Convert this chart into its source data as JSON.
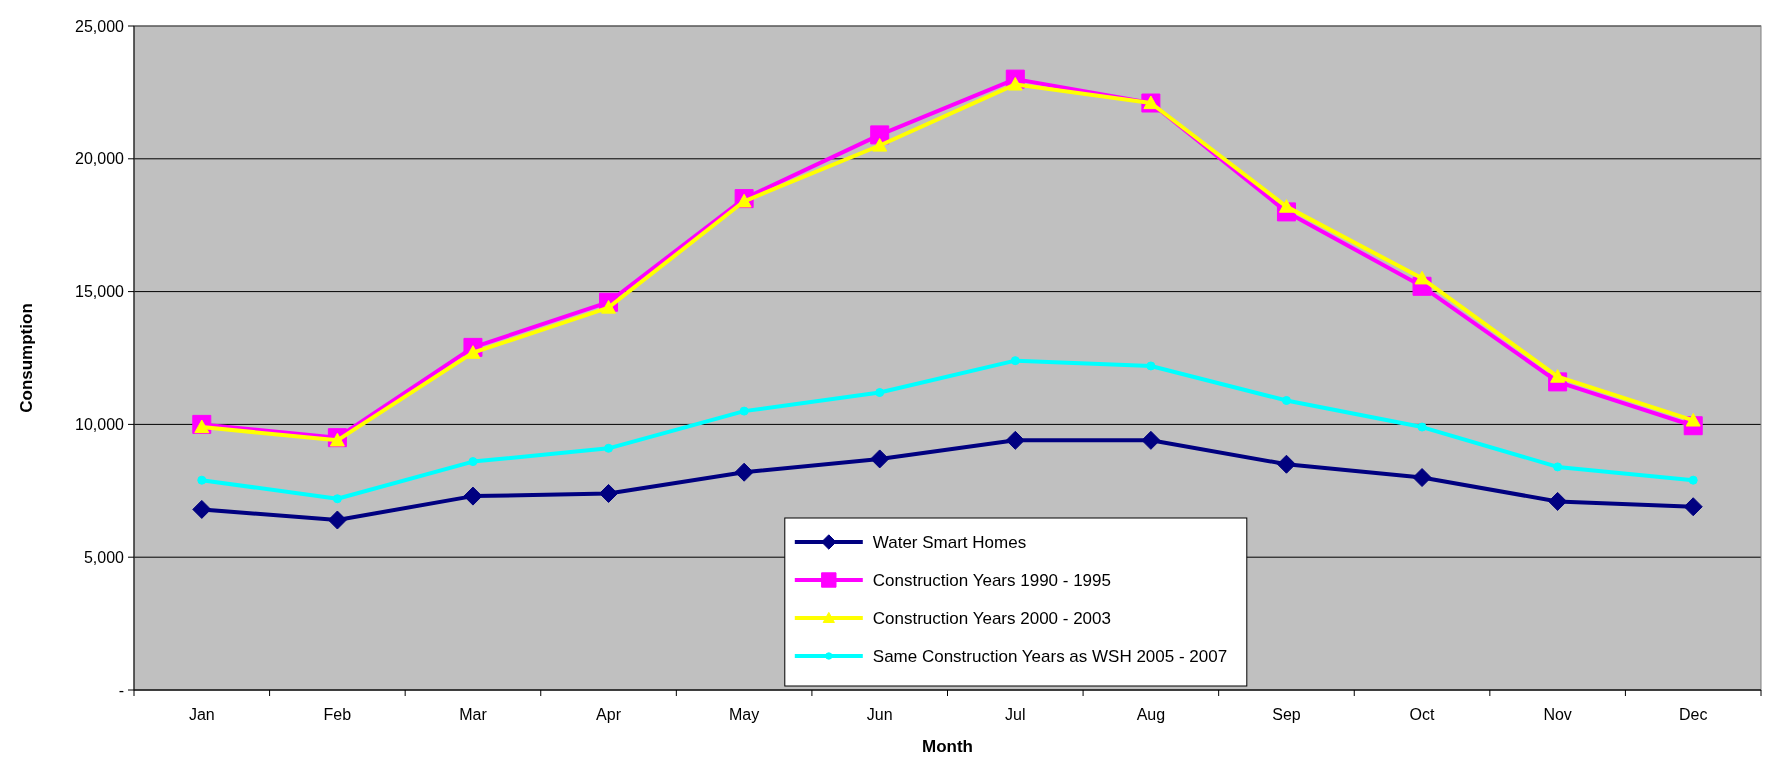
{
  "chart_data": {
    "type": "line",
    "xlabel": "Month",
    "ylabel": "Consumption",
    "categories": [
      "Jan",
      "Feb",
      "Mar",
      "Apr",
      "May",
      "Jun",
      "Jul",
      "Aug",
      "Sep",
      "Oct",
      "Nov",
      "Dec"
    ],
    "series": [
      {
        "name": "Water Smart Homes",
        "color": "#000080",
        "marker": "diamond",
        "values": [
          6800,
          6400,
          7300,
          7400,
          8200,
          8700,
          9400,
          9400,
          8500,
          8000,
          7100,
          6900
        ]
      },
      {
        "name": "Construction Years 1990 - 1995",
        "color": "#ff00ff",
        "marker": "square",
        "values": [
          10000,
          9500,
          12900,
          14600,
          18500,
          20900,
          23000,
          22100,
          18000,
          15200,
          11600,
          9950
        ]
      },
      {
        "name": "Construction Years 2000 - 2003",
        "color": "#ffff00",
        "marker": "triangle",
        "values": [
          9900,
          9400,
          12700,
          14400,
          18400,
          20500,
          22800,
          22100,
          18200,
          15500,
          11800,
          10150
        ]
      },
      {
        "name": "Same Construction Years as WSH 2005 - 2007",
        "color": "#00ffff",
        "marker": "circle",
        "values": [
          7900,
          7200,
          8600,
          9100,
          10500,
          11200,
          12400,
          12200,
          10900,
          9900,
          8400,
          7900
        ]
      }
    ],
    "ylim": [
      0,
      25000
    ],
    "yticks": [
      {
        "value": 0,
        "label": "-"
      },
      {
        "value": 5000,
        "label": "5,000"
      },
      {
        "value": 10000,
        "label": "10,000"
      },
      {
        "value": 15000,
        "label": "15,000"
      },
      {
        "value": 20000,
        "label": "20,000"
      },
      {
        "value": 25000,
        "label": "25,000"
      }
    ],
    "grid": "y",
    "legend": "bottom"
  }
}
